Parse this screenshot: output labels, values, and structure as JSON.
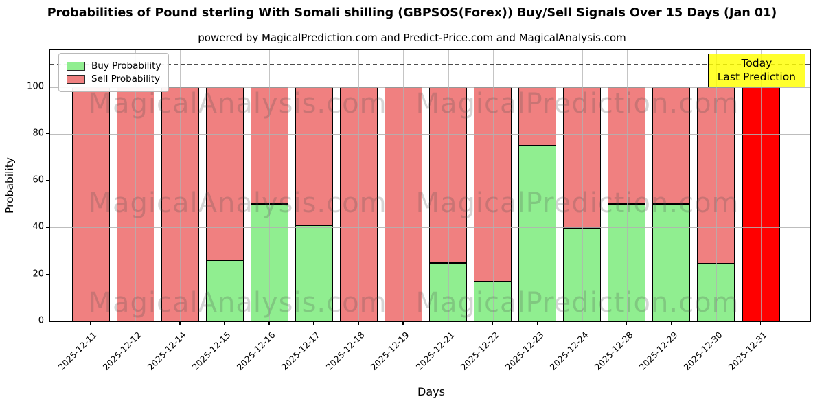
{
  "title": "Probabilities of Pound sterling With Somali shilling (GBPSOS(Forex)) Buy/Sell Signals Over 15 Days (Jan 01)",
  "subtitle": "powered by MagicalPrediction.com and Predict-Price.com and MagicalAnalysis.com",
  "legend": {
    "items": [
      {
        "label": "Buy Probability",
        "color": "#90ee90"
      },
      {
        "label": "Sell Probability",
        "color": "#f08080"
      }
    ]
  },
  "today_box": {
    "line1": "Today",
    "line2": "Last Prediction",
    "bg_color": "#ffff00"
  },
  "axes": {
    "ylabel": "Probability",
    "xlabel": "Days",
    "yticks": [
      0,
      20,
      40,
      60,
      80,
      100
    ],
    "ymax": 115.74,
    "dashed_line_y": 110,
    "grid": true
  },
  "watermarks": {
    "left_text": "MagicalAnalysis.com",
    "right_text": "MagicalPrediction.com"
  },
  "chart_data": {
    "type": "bar",
    "stacked": true,
    "title": "Probabilities of Pound sterling With Somali shilling (GBPSOS(Forex)) Buy/Sell Signals Over 15 Days (Jan 01)",
    "xlabel": "Days",
    "ylabel": "Probability",
    "ylim": [
      0,
      115.74
    ],
    "categories": [
      "2025-12-11",
      "2025-12-12",
      "2025-12-14",
      "2025-12-15",
      "2025-12-16",
      "2025-12-17",
      "2025-12-18",
      "2025-12-19",
      "2025-12-21",
      "2025-12-22",
      "2025-12-23",
      "2025-12-24",
      "2025-12-28",
      "2025-12-29",
      "2025-12-30",
      "2025-12-31"
    ],
    "series": [
      {
        "name": "Buy Probability",
        "color": "#90ee90",
        "values": [
          0,
          0,
          0,
          26,
          50,
          41,
          0,
          0,
          25,
          17,
          75,
          40,
          50,
          50,
          24.5,
          0
        ]
      },
      {
        "name": "Sell Probability",
        "color": "#f08080",
        "values": [
          100,
          100,
          100,
          74,
          50,
          59,
          100,
          100,
          75,
          83,
          25,
          60,
          50,
          50,
          75.5,
          100
        ]
      }
    ],
    "today_bar": {
      "category": "2025-12-31",
      "color": "#ff0000",
      "total": 100
    },
    "legend_position": "upper left"
  }
}
